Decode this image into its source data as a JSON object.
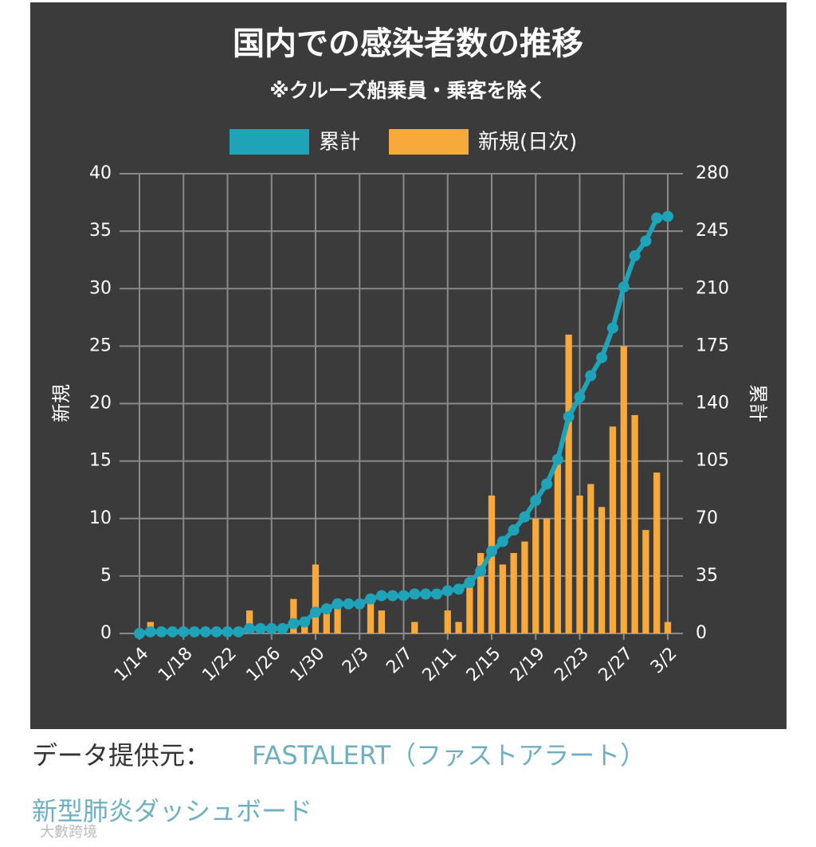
{
  "chart_data": {
    "type": "bar",
    "title": "国内での感染者数の推移",
    "subtitle": "※クルーズ船乗員・乗客を除く",
    "y_label": "新規",
    "y2_label": "累計",
    "categories": [
      "1/14",
      null,
      null,
      null,
      "1/18",
      null,
      null,
      null,
      "1/22",
      null,
      null,
      null,
      "1/26",
      null,
      null,
      null,
      "1/30",
      null,
      null,
      null,
      "2/3",
      null,
      null,
      null,
      "2/7",
      null,
      null,
      null,
      "2/11",
      null,
      null,
      null,
      "2/15",
      null,
      null,
      null,
      "2/19",
      null,
      null,
      null,
      "2/23",
      null,
      null,
      null,
      "2/27",
      null,
      null,
      null,
      "3/2"
    ],
    "series": [
      {
        "name": "累計",
        "type": "line",
        "axis": "y2",
        "color": "#1ea3b8",
        "values": [
          0,
          1,
          1,
          1,
          1,
          1,
          1,
          1,
          1,
          1,
          3,
          3,
          3,
          3,
          6,
          7,
          13,
          15,
          18,
          18,
          18,
          21,
          23,
          23,
          23,
          24,
          24,
          24,
          26,
          27,
          31,
          38,
          50,
          56,
          63,
          71,
          81,
          91,
          106,
          132,
          144,
          157,
          168,
          186,
          211,
          230,
          239,
          253,
          254
        ]
      },
      {
        "name": "新規(日次)",
        "type": "bar",
        "color": "#f7a93c",
        "values": [
          0,
          1,
          0,
          0,
          0,
          0,
          0,
          0,
          0,
          0,
          2,
          0,
          0,
          0,
          3,
          1,
          6,
          2,
          3,
          0,
          0,
          3,
          2,
          0,
          0,
          1,
          0,
          0,
          2,
          1,
          4,
          7,
          12,
          6,
          7,
          8,
          10,
          10,
          15,
          26,
          12,
          13,
          11,
          18,
          25,
          19,
          9,
          14,
          1
        ]
      }
    ],
    "ylim": [
      0,
      40
    ],
    "yticks": [
      0,
      5,
      10,
      15,
      20,
      25,
      30,
      35,
      40
    ],
    "y2lim": [
      0,
      280
    ],
    "y2ticks": [
      0,
      35,
      70,
      105,
      140,
      175,
      210,
      245,
      280
    ],
    "grid": true
  },
  "footer": {
    "source_label": "データ提供元：",
    "source_name": "FASTALERT（ファストアラート）",
    "source_title": "新型肺炎ダッシュボード",
    "watermark": "大數跨境"
  }
}
